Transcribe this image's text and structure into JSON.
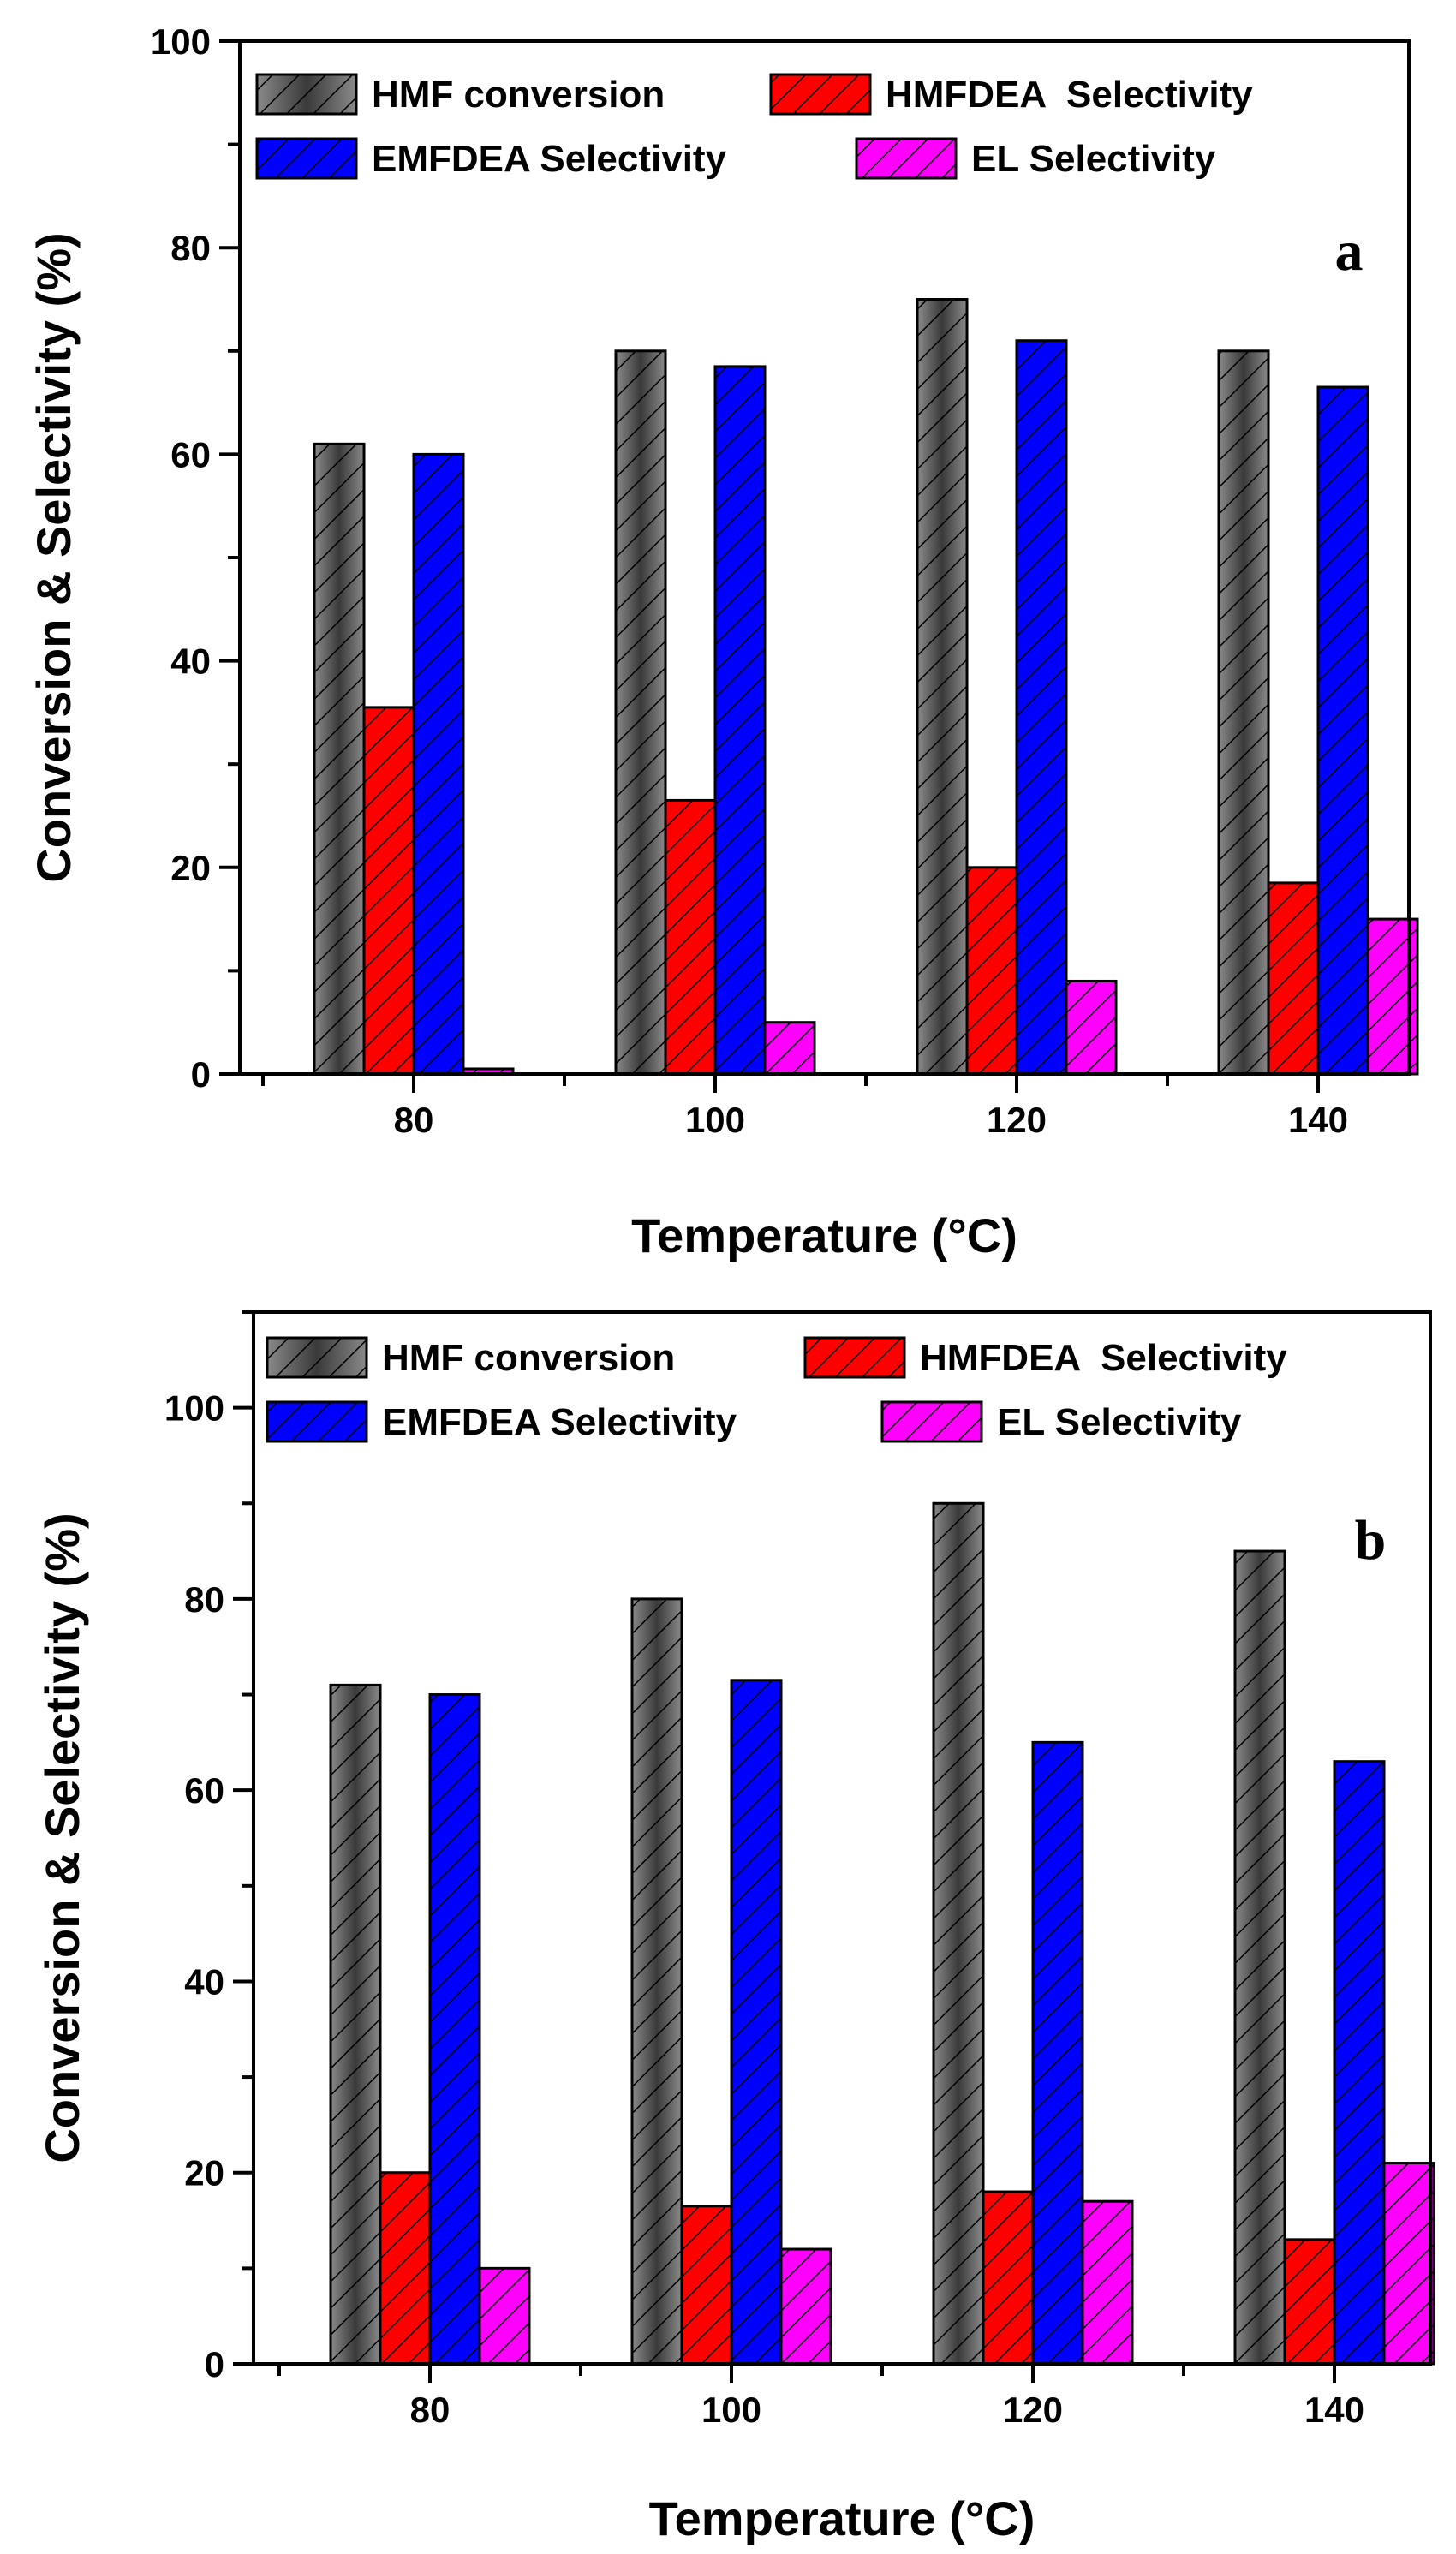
{
  "chart_data": [
    {
      "type": "bar",
      "panel_label": "a",
      "title": "",
      "xlabel": "Temperature (°C)",
      "ylabel": "Conversion & Selectivity (%)",
      "ylim": [
        0,
        100
      ],
      "yticks": [
        0,
        20,
        40,
        60,
        80,
        100
      ],
      "categories": [
        "80",
        "100",
        "120",
        "140"
      ],
      "legend_position": "top",
      "series": [
        {
          "name": "HMF conversion",
          "values": [
            61,
            70,
            75,
            70
          ],
          "color": "#6e6e6e"
        },
        {
          "name": "HMFDEA  Selectivity",
          "values": [
            35.5,
            26.5,
            20,
            18.5
          ],
          "color": "#ff0000"
        },
        {
          "name": "EMFDEA Selectivity",
          "values": [
            60,
            68.5,
            71,
            66.5
          ],
          "color": "#0000ff"
        },
        {
          "name": "EL Selectivity",
          "values": [
            0.5,
            5,
            9,
            15
          ],
          "color": "#ff00ff"
        }
      ]
    },
    {
      "type": "bar",
      "panel_label": "b",
      "title": "",
      "xlabel": "Temperature (°C)",
      "ylabel": "Conversion & Selectivity (%)",
      "ylim": [
        0,
        110
      ],
      "yticks": [
        0,
        20,
        40,
        60,
        80,
        100
      ],
      "categories": [
        "80",
        "100",
        "120",
        "140"
      ],
      "legend_position": "top",
      "series": [
        {
          "name": "HMF conversion",
          "values": [
            71,
            80,
            90,
            85
          ],
          "color": "#6e6e6e"
        },
        {
          "name": "HMFDEA  Selectivity",
          "values": [
            20,
            16.5,
            18,
            13
          ],
          "color": "#ff0000"
        },
        {
          "name": "EMFDEA Selectivity",
          "values": [
            70,
            71.5,
            65,
            63
          ],
          "color": "#0000ff"
        },
        {
          "name": "EL Selectivity",
          "values": [
            10,
            12,
            17,
            21
          ],
          "color": "#ff00ff"
        }
      ]
    }
  ]
}
